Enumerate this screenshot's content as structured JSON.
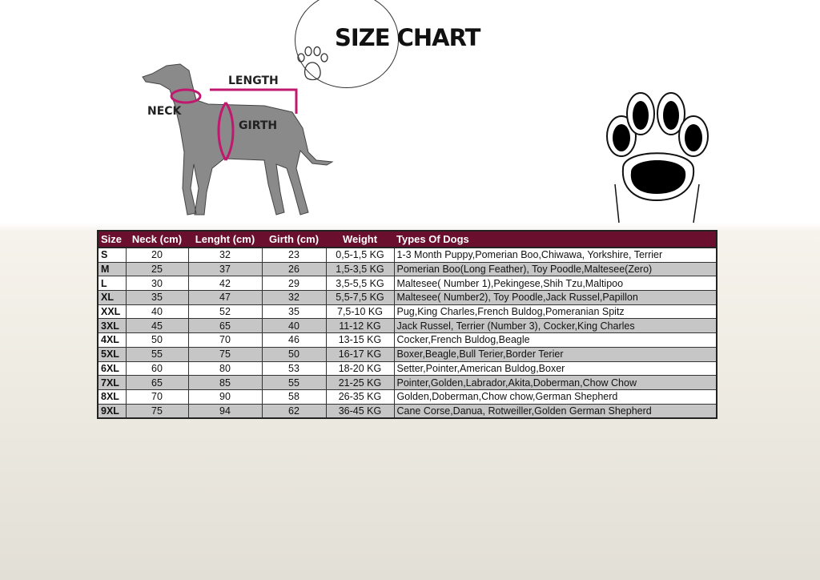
{
  "title": "SIZE CHART",
  "labels": {
    "neck": "NECK",
    "length": "LENGTH",
    "girth": "GIRTH"
  },
  "colors": {
    "header": "#6a0f2e",
    "measure_line": "#c0186e"
  },
  "icons": [
    "paw-print-icon",
    "dog-illustration"
  ],
  "table": {
    "headers": [
      "Size",
      "Neck (cm)",
      "Lenght (cm)",
      "Girth (cm)",
      "Weight",
      "Types Of Dogs"
    ],
    "rows": [
      [
        "S",
        "20",
        "32",
        "23",
        "0,5-1,5 KG",
        "1-3 Month Puppy,Pomerian Boo,Chiwawa, Yorkshire, Terrier"
      ],
      [
        "M",
        "25",
        "37",
        "26",
        "1,5-3,5 KG",
        "Pomerian Boo(Long Feather), Toy Poodle,Maltesee(Zero)"
      ],
      [
        "L",
        "30",
        "42",
        "29",
        "3,5-5,5 KG",
        "Maltesee( Number 1),Pekingese,Shih Tzu,Maltipoo"
      ],
      [
        "XL",
        "35",
        "47",
        "32",
        "5,5-7,5 KG",
        "Maltesee( Number2), Toy Poodle,Jack Russel,Papillon"
      ],
      [
        "XXL",
        "40",
        "52",
        "35",
        "7,5-10 KG",
        "Pug,King Charles,French Buldog,Pomeranian Spitz"
      ],
      [
        "3XL",
        "45",
        "65",
        "40",
        "11-12 KG",
        "Jack Russel, Terrier (Number 3), Cocker,King Charles"
      ],
      [
        "4XL",
        "50",
        "70",
        "46",
        "13-15 KG",
        "Cocker,French Buldog,Beagle"
      ],
      [
        "5XL",
        "55",
        "75",
        "50",
        "16-17 KG",
        "Boxer,Beagle,Bull Terier,Border Terier"
      ],
      [
        "6XL",
        "60",
        "80",
        "53",
        "18-20 KG",
        "Setter,Pointer,American Buldog,Boxer"
      ],
      [
        "7XL",
        "65",
        "85",
        "55",
        "21-25 KG",
        "Pointer,Golden,Labrador,Akita,Doberman,Chow Chow"
      ],
      [
        "8XL",
        "70",
        "90",
        "58",
        "26-35 KG",
        "Golden,Doberman,Chow chow,German Shepherd"
      ],
      [
        "9XL",
        "75",
        "94",
        "62",
        "36-45 KG",
        "Cane Corse,Danua, Rotweiller,Golden German Shepherd"
      ]
    ]
  }
}
